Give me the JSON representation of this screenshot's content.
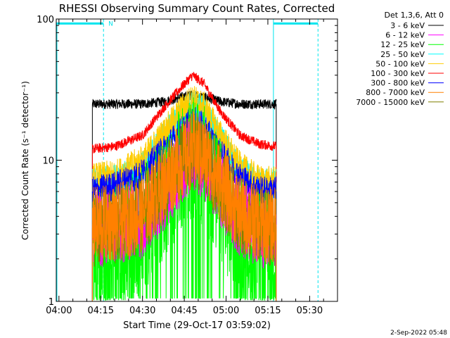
{
  "chart_data": {
    "type": "line",
    "title": "RHESSI Observing Summary Count Rates, Corrected",
    "xlabel": "Start Time (29-Oct-17 03:59:02)",
    "ylabel": "Corrected Count Rate (s⁻¹ detector⁻¹)",
    "y_scale": "log",
    "ylim": [
      1,
      100
    ],
    "xlim": [
      "03:59:02",
      "05:40:00"
    ],
    "x_ticks": [
      "04:00",
      "04:15",
      "04:30",
      "04:45",
      "05:00",
      "05:15",
      "05:30"
    ],
    "y_ticks": [
      "1",
      "10",
      "100"
    ],
    "legend_title": "Det 1,3,6, Att 0",
    "legend_position": "right outside",
    "annotations": [
      {
        "text": "N",
        "x": "04:17",
        "y": 93
      }
    ],
    "night_bars": [
      {
        "from": "03:59",
        "to": "04:16",
        "y": 93,
        "color": "#00e5ee"
      },
      {
        "from": "05:17",
        "to": "05:33",
        "y": 93,
        "color": "#00e5ee"
      }
    ],
    "vlines": [
      {
        "x": "04:16",
        "style": "dashed",
        "color": "#00e5ee"
      },
      {
        "x": "05:17",
        "style": "solid",
        "color": "#00e5ee"
      },
      {
        "x": "05:33",
        "style": "dashed",
        "color": "#00e5ee"
      }
    ],
    "x_times": [
      "04:12",
      "04:20",
      "04:30",
      "04:38",
      "04:44",
      "04:48",
      "04:52",
      "04:58",
      "05:05",
      "05:12",
      "05:18"
    ],
    "series": [
      {
        "name": "3 - 6 keV",
        "color": "#000000",
        "values": [
          25,
          25,
          25,
          26,
          28,
          29,
          28,
          26,
          25,
          25,
          25
        ]
      },
      {
        "name": "6 - 12 keV",
        "color": "#ff00ff",
        "values": [
          3.2,
          3.3,
          3.8,
          6,
          9,
          11,
          10,
          6,
          3.8,
          3.2,
          3.1
        ]
      },
      {
        "name": "12 - 25 keV",
        "color": "#00ff00",
        "values": [
          2.2,
          2.3,
          3.2,
          5.5,
          8.5,
          10,
          9,
          5,
          2.8,
          2.2,
          2.2
        ]
      },
      {
        "name": "25 - 50 keV",
        "color": "#00ffff",
        "values": [
          7,
          7.2,
          9,
          15,
          21,
          25,
          22,
          14,
          8.5,
          6.8,
          6.8
        ]
      },
      {
        "name": "50 - 100 keV",
        "color": "#ffcc00",
        "values": [
          7.5,
          7.8,
          10,
          16,
          23,
          27,
          24,
          15,
          9,
          7.2,
          7
        ]
      },
      {
        "name": "100 - 300 keV",
        "color": "#ff0000",
        "values": [
          12,
          12.5,
          15,
          24,
          33,
          40,
          35,
          22,
          15,
          13,
          12.5
        ]
      },
      {
        "name": "300 - 800 keV",
        "color": "#0000ff",
        "values": [
          6,
          6.5,
          8,
          12,
          16,
          19,
          17,
          11,
          7.5,
          6,
          6
        ]
      },
      {
        "name": "800 - 7000 keV",
        "color": "#ff8000",
        "values": [
          3.5,
          3.6,
          4.2,
          7,
          10,
          12,
          11,
          7,
          4.2,
          3.5,
          3.5
        ]
      },
      {
        "name": "7000 - 15000 keV",
        "color": "#808000",
        "values": [
          3.3,
          3.4,
          4,
          6.8,
          9.8,
          11.5,
          10.5,
          6.8,
          4,
          3.4,
          3.3
        ]
      }
    ]
  },
  "footer": {
    "timestamp": "2-Sep-2022 05:48"
  }
}
